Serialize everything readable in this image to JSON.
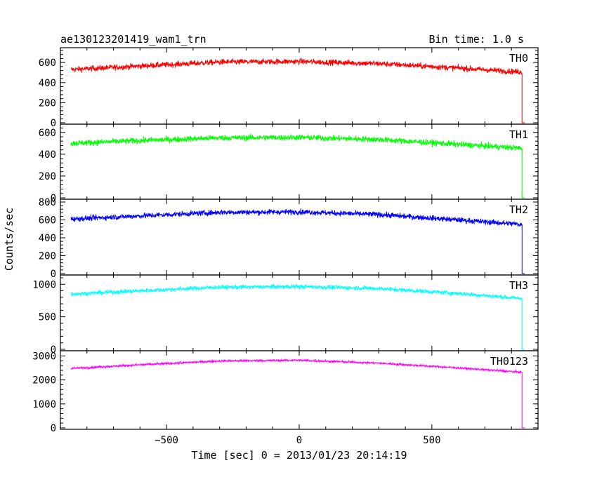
{
  "chart_data": {
    "type": "line",
    "title": "ae130123201419_wam1_trn",
    "bin_time": "Bin time: 1.0 s",
    "xlabel": "Time [sec] 0 = 2013/01/23 20:14:19",
    "ylabel": "Counts/sec",
    "xlim": [
      -900,
      900
    ],
    "x_ticks": [
      -500,
      0,
      500
    ],
    "x_tick_labels": [
      "−500",
      "0",
      "500"
    ],
    "data_range": [
      -860,
      840
    ],
    "drop_to": 0,
    "grid": false,
    "panels": [
      {
        "name": "TH0",
        "color": "#ff0000",
        "ylim": [
          0,
          720
        ],
        "y_ticks": [
          0,
          200,
          400,
          600
        ],
        "y_tick_labels": [
          "0",
          "200",
          "400",
          "600"
        ],
        "trend": {
          "x": [
            -860,
            -600,
            -300,
            0,
            300,
            600,
            840
          ],
          "y": [
            530,
            565,
            605,
            610,
            590,
            545,
            505
          ]
        },
        "noise": 28
      },
      {
        "name": "TH1",
        "color": "#00ff00",
        "ylim": [
          0,
          650
        ],
        "y_ticks": [
          0,
          200,
          400,
          600
        ],
        "y_tick_labels": [
          "0",
          "200",
          "400",
          "600"
        ],
        "trend": {
          "x": [
            -860,
            -600,
            -300,
            0,
            300,
            600,
            840
          ],
          "y": [
            500,
            525,
            550,
            555,
            535,
            490,
            455
          ]
        },
        "noise": 27
      },
      {
        "name": "TH2",
        "color": "#0000ff",
        "ylim": [
          0,
          800
        ],
        "y_ticks": [
          0,
          200,
          400,
          600,
          800
        ],
        "y_tick_labels": [
          "0",
          "200",
          "400",
          "600",
          "800"
        ],
        "trend": {
          "x": [
            -860,
            -600,
            -300,
            0,
            300,
            600,
            840
          ],
          "y": [
            610,
            645,
            685,
            690,
            660,
            600,
            550
          ]
        },
        "noise": 30
      },
      {
        "name": "TH3",
        "color": "#00ffff",
        "ylim": [
          0,
          1100
        ],
        "y_ticks": [
          0,
          500,
          1000
        ],
        "y_tick_labels": [
          "0",
          "500",
          "1000"
        ],
        "trend": {
          "x": [
            -860,
            -600,
            -300,
            0,
            300,
            600,
            840
          ],
          "y": [
            850,
            900,
            955,
            965,
            935,
            860,
            780
          ]
        },
        "noise": 32
      },
      {
        "name": "TH0123",
        "color": "#ff00ff",
        "ylim": [
          0,
          3100
        ],
        "y_ticks": [
          0,
          1000,
          2000,
          3000
        ],
        "y_tick_labels": [
          "0",
          "1000",
          "2000",
          "3000"
        ],
        "trend": {
          "x": [
            -860,
            -600,
            -300,
            0,
            300,
            600,
            840
          ],
          "y": [
            2480,
            2630,
            2790,
            2820,
            2700,
            2500,
            2320
          ]
        },
        "noise": 45
      }
    ]
  }
}
